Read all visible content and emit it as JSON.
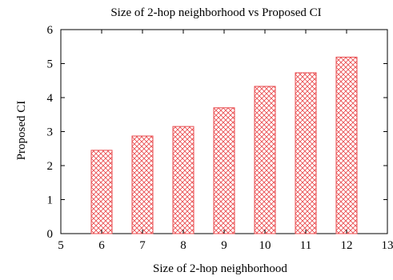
{
  "chart_data": {
    "type": "bar",
    "title": "Size of 2-hop neighborhood vs Proposed CI",
    "xlabel": "Size of 2-hop neighborhood",
    "ylabel": "Proposed CI",
    "categories": [
      6,
      7,
      8,
      9,
      10,
      11,
      12
    ],
    "values": [
      2.45,
      2.87,
      3.15,
      3.7,
      4.33,
      4.73,
      5.19
    ],
    "xlim": [
      5,
      13
    ],
    "ylim": [
      0,
      6
    ],
    "x_ticks": [
      "5",
      "6",
      "7",
      "8",
      "9",
      "10",
      "11",
      "12",
      "13"
    ],
    "y_ticks": [
      "0",
      "1",
      "2",
      "3",
      "4",
      "5",
      "6"
    ],
    "bar_color": "#e8484b",
    "bar_fill": "crosshatch",
    "grid": false,
    "legend": "none"
  }
}
